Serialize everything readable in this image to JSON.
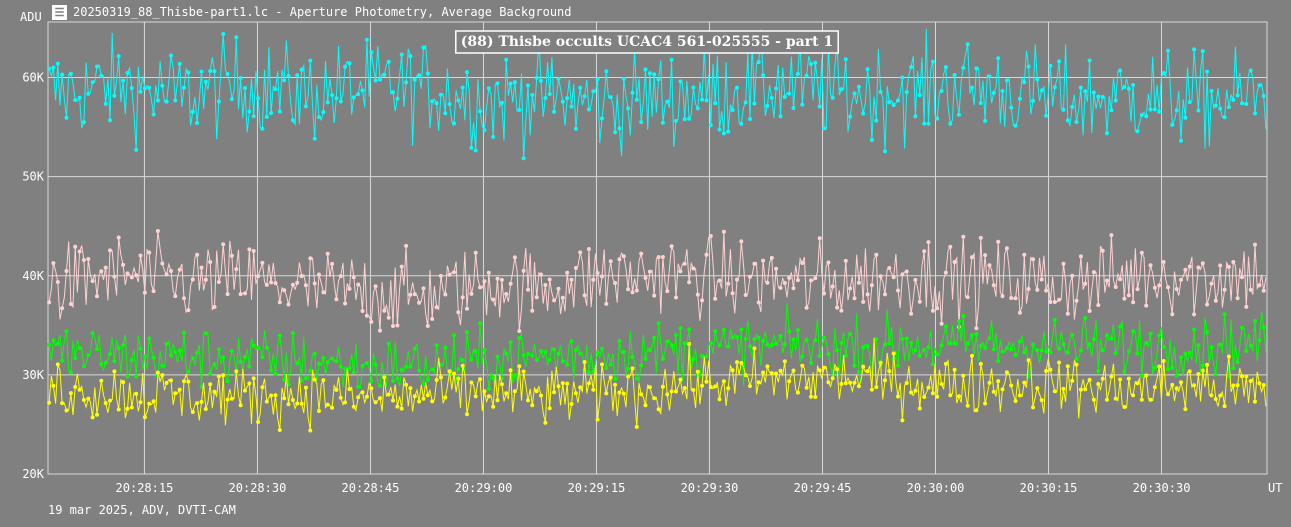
{
  "window": {
    "title": "20250319_88_Thisbe-part1.lc - Aperture Photometry, Average Background",
    "icon": "lightcurve-app-icon"
  },
  "footer": {
    "text": "19 mar 2025, ADV, DVTI-CAM"
  },
  "chart_data": {
    "type": "line",
    "title": "(88) Thisbe occults UCAC4 561-025555 - part 1",
    "ylabel": "ADU",
    "xlabel": "UT",
    "ylim": [
      20000,
      65600
    ],
    "xlim": [
      "20:28:02.2",
      "20:30:44.0"
    ],
    "y_ticks": [
      {
        "value": 20000,
        "label": "20K"
      },
      {
        "value": 30000,
        "label": "30K"
      },
      {
        "value": 40000,
        "label": "40K"
      },
      {
        "value": 50000,
        "label": "50K"
      },
      {
        "value": 60000,
        "label": "60K"
      }
    ],
    "x_ticks": [
      "20:28:15",
      "20:28:30",
      "20:28:45",
      "20:29:00",
      "20:29:15",
      "20:29:30",
      "20:29:45",
      "20:30:00",
      "20:30:15",
      "20:30:30"
    ],
    "grid": true,
    "background": "#808080",
    "series": [
      {
        "color": "#00ffff",
        "t": [
          "20:28:04",
          "20:28:12",
          "20:28:20",
          "20:28:28",
          "20:28:36",
          "20:28:44",
          "20:28:52",
          "20:29:00",
          "20:29:08",
          "20:29:16",
          "20:29:24",
          "20:29:32",
          "20:29:40",
          "20:29:48",
          "20:29:56",
          "20:30:04",
          "20:30:12",
          "20:30:20",
          "20:30:28",
          "20:30:36",
          "20:30:42"
        ],
        "values": [
          58500,
          59200,
          58100,
          59400,
          58300,
          58900,
          59100,
          57600,
          58200,
          57300,
          58000,
          58600,
          59300,
          58300,
          58600,
          59200,
          58400,
          57700,
          58300,
          57600,
          58200
        ]
      },
      {
        "color": "#ffd2d2",
        "t": [
          "20:28:04",
          "20:28:12",
          "20:28:20",
          "20:28:28",
          "20:28:36",
          "20:28:44",
          "20:28:52",
          "20:29:00",
          "20:29:08",
          "20:29:16",
          "20:29:24",
          "20:29:32",
          "20:29:40",
          "20:29:48",
          "20:29:56",
          "20:30:04",
          "20:30:12",
          "20:30:20",
          "20:30:28",
          "20:30:36",
          "20:30:42"
        ],
        "values": [
          39200,
          40200,
          39300,
          39700,
          38700,
          38500,
          37900,
          39300,
          38800,
          39900,
          40300,
          39900,
          39300,
          39500,
          40100,
          39700,
          39400,
          39200,
          40400,
          39600,
          40300
        ]
      },
      {
        "color": "#00ff00",
        "t": [
          "20:28:04",
          "20:28:12",
          "20:28:20",
          "20:28:28",
          "20:28:36",
          "20:28:44",
          "20:28:52",
          "20:29:00",
          "20:29:08",
          "20:29:16",
          "20:29:24",
          "20:29:32",
          "20:29:40",
          "20:29:48",
          "20:29:56",
          "20:30:04",
          "20:30:12",
          "20:30:20",
          "20:30:28",
          "20:30:36",
          "20:30:42"
        ],
        "values": [
          32200,
          31900,
          31800,
          31700,
          31400,
          30700,
          31000,
          31400,
          31800,
          32100,
          32400,
          32700,
          32900,
          32800,
          33100,
          32900,
          33100,
          32800,
          33100,
          32900,
          33300
        ]
      },
      {
        "color": "#ffff00",
        "t": [
          "20:28:04",
          "20:28:12",
          "20:28:20",
          "20:28:28",
          "20:28:36",
          "20:28:44",
          "20:28:52",
          "20:29:00",
          "20:29:08",
          "20:29:16",
          "20:29:24",
          "20:29:32",
          "20:29:40",
          "20:29:48",
          "20:29:56",
          "20:30:04",
          "20:30:12",
          "20:30:20",
          "20:30:28",
          "20:30:36",
          "20:30:42"
        ],
        "values": [
          28600,
          28200,
          27900,
          27800,
          28100,
          27600,
          28000,
          28300,
          27800,
          28200,
          28700,
          29300,
          29500,
          29700,
          29400,
          28900,
          29300,
          28700,
          28600,
          28900,
          28300
        ]
      }
    ]
  }
}
